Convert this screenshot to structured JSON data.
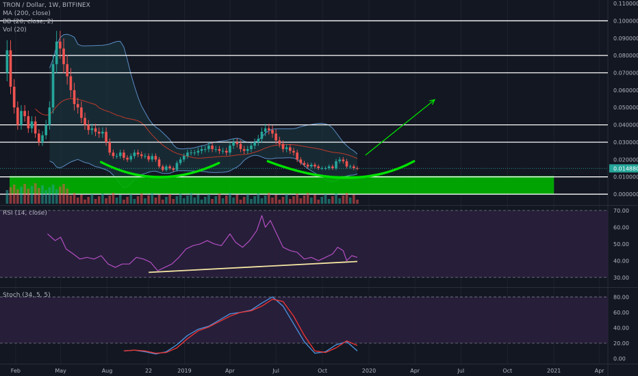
{
  "header": {
    "symbol_line": "TRON / Dollar, 1W, BITFINEX",
    "indicators": [
      "MA (200, close)",
      "BB (20, close, 2)",
      "Vol (20)"
    ]
  },
  "colors": {
    "background": "#131722",
    "grid": "#1e222d",
    "up": "#26a69a",
    "down": "#ef5350",
    "ma": "#c0392b",
    "bb_line": "#5b8dc4",
    "bb_fill": "#1b3a44",
    "support_zone": "#00b300",
    "curve": "#00e000",
    "arrow": "#00e000",
    "rsi_line": "#b44fc2",
    "rsi_band": "#2a1f3d",
    "trendline": "#f5e6a3",
    "stoch_k": "#4a90d9",
    "stoch_d": "#e83535",
    "horizontal_level": "#ffffff",
    "price_label_bg": "#26a69a"
  },
  "chart_data": [
    {
      "id": "price",
      "type": "candlestick",
      "x_axis": {
        "range": [
          "2018-01-01",
          "2021-04-15"
        ],
        "tick_labels": [
          {
            "label": "Feb",
            "date": "2018-02-01"
          },
          {
            "label": "May",
            "date": "2018-05-01"
          },
          {
            "label": "Aug",
            "date": "2018-08-01"
          },
          {
            "label": "22",
            "date": "2018-10-22"
          },
          {
            "label": "2019",
            "date": "2019-01-01"
          },
          {
            "label": "Apr",
            "date": "2019-04-01"
          },
          {
            "label": "Jul",
            "date": "2019-07-01"
          },
          {
            "label": "Oct",
            "date": "2019-10-01"
          },
          {
            "label": "2020",
            "date": "2020-01-01"
          },
          {
            "label": "Apr",
            "date": "2020-04-01"
          },
          {
            "label": "Jul",
            "date": "2020-07-01"
          },
          {
            "label": "Oct",
            "date": "2020-10-01"
          },
          {
            "label": "2021",
            "date": "2021-01-01"
          },
          {
            "label": "Apr",
            "date": "2021-04-01"
          }
        ]
      },
      "y_axis": {
        "range": [
          -0.0055,
          0.112
        ],
        "ticks": [
          "0.110000",
          "0.100000",
          "0.090000",
          "0.080000",
          "0.070000",
          "0.060000",
          "0.050000",
          "0.040000",
          "0.030000",
          "0.020000",
          "0.010000",
          "0.000000"
        ]
      },
      "horizontal_levels": [
        0.1,
        0.08,
        0.07,
        0.04,
        0.03,
        0.01,
        0.0
      ],
      "current_price": {
        "value": 0.01488,
        "label": "0.014880"
      },
      "support_zone": {
        "from": 0.0,
        "to": 0.0105,
        "start": "2018-01-20",
        "end": "2021-01-01"
      },
      "weekly_close": [
        [
          "2018-01-15",
          0.083
        ],
        [
          "2018-01-22",
          0.062
        ],
        [
          "2018-01-29",
          0.05
        ],
        [
          "2018-02-05",
          0.04
        ],
        [
          "2018-02-12",
          0.048
        ],
        [
          "2018-02-19",
          0.045
        ],
        [
          "2018-02-26",
          0.038
        ],
        [
          "2018-03-05",
          0.042
        ],
        [
          "2018-03-12",
          0.035
        ],
        [
          "2018-03-19",
          0.03
        ],
        [
          "2018-03-26",
          0.034
        ],
        [
          "2018-04-02",
          0.04
        ],
        [
          "2018-04-09",
          0.05
        ],
        [
          "2018-04-16",
          0.075
        ],
        [
          "2018-04-23",
          0.088
        ],
        [
          "2018-04-30",
          0.084
        ],
        [
          "2018-05-07",
          0.075
        ],
        [
          "2018-05-14",
          0.068
        ],
        [
          "2018-05-21",
          0.06
        ],
        [
          "2018-05-28",
          0.052
        ],
        [
          "2018-06-04",
          0.05
        ],
        [
          "2018-06-11",
          0.044
        ],
        [
          "2018-06-18",
          0.04
        ],
        [
          "2018-06-25",
          0.037
        ],
        [
          "2018-07-02",
          0.038
        ],
        [
          "2018-07-09",
          0.036
        ],
        [
          "2018-07-16",
          0.035
        ],
        [
          "2018-07-23",
          0.036
        ],
        [
          "2018-07-30",
          0.03
        ],
        [
          "2018-08-06",
          0.024
        ],
        [
          "2018-08-13",
          0.022
        ],
        [
          "2018-08-20",
          0.022
        ],
        [
          "2018-08-27",
          0.024
        ],
        [
          "2018-09-03",
          0.021
        ],
        [
          "2018-09-10",
          0.02
        ],
        [
          "2018-09-17",
          0.022
        ],
        [
          "2018-09-24",
          0.024
        ],
        [
          "2018-10-01",
          0.023
        ],
        [
          "2018-10-08",
          0.022
        ],
        [
          "2018-10-15",
          0.022
        ],
        [
          "2018-10-22",
          0.02
        ],
        [
          "2018-10-29",
          0.022
        ],
        [
          "2018-11-05",
          0.02
        ],
        [
          "2018-11-12",
          0.016
        ],
        [
          "2018-11-19",
          0.014
        ],
        [
          "2018-11-26",
          0.016
        ],
        [
          "2018-12-03",
          0.015
        ],
        [
          "2018-12-10",
          0.014
        ],
        [
          "2018-12-17",
          0.018
        ],
        [
          "2018-12-24",
          0.02
        ],
        [
          "2018-12-31",
          0.022
        ],
        [
          "2019-01-07",
          0.024
        ],
        [
          "2019-01-14",
          0.024
        ],
        [
          "2019-01-21",
          0.024
        ],
        [
          "2019-01-28",
          0.025
        ],
        [
          "2019-02-04",
          0.026
        ],
        [
          "2019-02-11",
          0.026
        ],
        [
          "2019-02-18",
          0.028
        ],
        [
          "2019-02-25",
          0.026
        ],
        [
          "2019-03-04",
          0.026
        ],
        [
          "2019-03-11",
          0.025
        ],
        [
          "2019-03-18",
          0.025
        ],
        [
          "2019-03-25",
          0.024
        ],
        [
          "2019-04-01",
          0.028
        ],
        [
          "2019-04-08",
          0.03
        ],
        [
          "2019-04-15",
          0.029
        ],
        [
          "2019-04-22",
          0.026
        ],
        [
          "2019-04-29",
          0.025
        ],
        [
          "2019-05-06",
          0.026
        ],
        [
          "2019-05-13",
          0.028
        ],
        [
          "2019-05-20",
          0.03
        ],
        [
          "2019-05-27",
          0.032
        ],
        [
          "2019-06-03",
          0.036
        ],
        [
          "2019-06-10",
          0.038
        ],
        [
          "2019-06-17",
          0.037
        ],
        [
          "2019-06-24",
          0.035
        ],
        [
          "2019-07-01",
          0.031
        ],
        [
          "2019-07-08",
          0.029
        ],
        [
          "2019-07-15",
          0.026
        ],
        [
          "2019-07-22",
          0.027
        ],
        [
          "2019-07-29",
          0.025
        ],
        [
          "2019-08-05",
          0.024
        ],
        [
          "2019-08-12",
          0.02
        ],
        [
          "2019-08-19",
          0.018
        ],
        [
          "2019-08-26",
          0.017
        ],
        [
          "2019-09-02",
          0.016
        ],
        [
          "2019-09-09",
          0.017
        ],
        [
          "2019-09-16",
          0.016
        ],
        [
          "2019-09-23",
          0.015
        ],
        [
          "2019-09-30",
          0.015
        ],
        [
          "2019-10-07",
          0.015
        ],
        [
          "2019-10-14",
          0.016
        ],
        [
          "2019-10-21",
          0.015
        ],
        [
          "2019-10-28",
          0.019
        ],
        [
          "2019-11-04",
          0.02
        ],
        [
          "2019-11-11",
          0.019
        ],
        [
          "2019-11-18",
          0.016
        ],
        [
          "2019-11-25",
          0.016
        ],
        [
          "2019-12-02",
          0.015
        ],
        [
          "2019-12-09",
          0.0149
        ]
      ]
    },
    {
      "id": "rsi",
      "type": "line",
      "y_axis": {
        "range": [
          25,
          72
        ],
        "ticks": [
          "70.00",
          "60.00",
          "50.00",
          "40.00",
          "30.00"
        ]
      },
      "band": [
        30,
        70
      ],
      "values": [
        [
          "2018-04-05",
          56
        ],
        [
          "2018-04-20",
          52
        ],
        [
          "2018-05-01",
          54
        ],
        [
          "2018-05-12",
          47
        ],
        [
          "2018-05-26",
          44
        ],
        [
          "2018-06-08",
          41
        ],
        [
          "2018-06-22",
          42
        ],
        [
          "2018-07-06",
          41
        ],
        [
          "2018-07-20",
          43
        ],
        [
          "2018-08-03",
          38
        ],
        [
          "2018-08-17",
          36
        ],
        [
          "2018-08-31",
          38
        ],
        [
          "2018-09-14",
          38
        ],
        [
          "2018-09-28",
          42
        ],
        [
          "2018-10-12",
          41
        ],
        [
          "2018-10-26",
          39
        ],
        [
          "2018-11-09",
          34
        ],
        [
          "2018-11-23",
          36
        ],
        [
          "2018-12-07",
          38
        ],
        [
          "2018-12-21",
          42
        ],
        [
          "2019-01-04",
          47
        ],
        [
          "2019-01-18",
          49
        ],
        [
          "2019-02-01",
          50
        ],
        [
          "2019-02-15",
          52
        ],
        [
          "2019-03-01",
          50
        ],
        [
          "2019-03-15",
          49
        ],
        [
          "2019-04-01",
          56
        ],
        [
          "2019-04-12",
          51
        ],
        [
          "2019-04-26",
          48
        ],
        [
          "2019-05-10",
          52
        ],
        [
          "2019-05-24",
          58
        ],
        [
          "2019-06-03",
          67
        ],
        [
          "2019-06-10",
          60
        ],
        [
          "2019-06-20",
          64
        ],
        [
          "2019-07-01",
          57
        ],
        [
          "2019-07-15",
          48
        ],
        [
          "2019-07-29",
          46
        ],
        [
          "2019-08-12",
          45
        ],
        [
          "2019-08-26",
          41
        ],
        [
          "2019-09-09",
          42
        ],
        [
          "2019-09-23",
          40
        ],
        [
          "2019-10-07",
          42
        ],
        [
          "2019-10-21",
          44
        ],
        [
          "2019-10-31",
          48
        ],
        [
          "2019-11-11",
          46
        ],
        [
          "2019-11-18",
          40
        ],
        [
          "2019-11-28",
          43
        ],
        [
          "2019-12-09",
          42
        ]
      ],
      "trendline": [
        [
          "2018-10-22",
          33
        ],
        [
          "2019-12-09",
          39.5
        ]
      ]
    },
    {
      "id": "stoch",
      "type": "line",
      "y_axis": {
        "range": [
          -3,
          90
        ],
        "ticks": [
          "80.00",
          "60.00",
          "40.00",
          "20.00",
          "0.00"
        ]
      },
      "band": [
        20,
        80
      ],
      "series": [
        {
          "id": "k",
          "values": [
            [
              "2018-09-03",
              10
            ],
            [
              "2018-09-24",
              11
            ],
            [
              "2018-10-15",
              9
            ],
            [
              "2018-11-05",
              6
            ],
            [
              "2018-11-26",
              9
            ],
            [
              "2018-12-17",
              18
            ],
            [
              "2019-01-07",
              30
            ],
            [
              "2019-01-28",
              38
            ],
            [
              "2019-02-18",
              42
            ],
            [
              "2019-03-11",
              50
            ],
            [
              "2019-04-01",
              58
            ],
            [
              "2019-04-22",
              60
            ],
            [
              "2019-05-13",
              63
            ],
            [
              "2019-06-03",
              72
            ],
            [
              "2019-06-24",
              80
            ],
            [
              "2019-07-15",
              68
            ],
            [
              "2019-08-05",
              45
            ],
            [
              "2019-08-26",
              22
            ],
            [
              "2019-09-16",
              7
            ],
            [
              "2019-10-07",
              9
            ],
            [
              "2019-10-28",
              18
            ],
            [
              "2019-11-18",
              22
            ],
            [
              "2019-12-09",
              10
            ]
          ]
        },
        {
          "id": "d",
          "values": [
            [
              "2018-09-03",
              10
            ],
            [
              "2018-09-24",
              11
            ],
            [
              "2018-10-15",
              10
            ],
            [
              "2018-11-05",
              7
            ],
            [
              "2018-11-26",
              8
            ],
            [
              "2018-12-17",
              14
            ],
            [
              "2019-01-07",
              26
            ],
            [
              "2019-01-28",
              36
            ],
            [
              "2019-02-18",
              41
            ],
            [
              "2019-03-11",
              48
            ],
            [
              "2019-04-01",
              55
            ],
            [
              "2019-04-22",
              60
            ],
            [
              "2019-05-13",
              62
            ],
            [
              "2019-06-03",
              68
            ],
            [
              "2019-06-24",
              77
            ],
            [
              "2019-07-15",
              74
            ],
            [
              "2019-08-05",
              55
            ],
            [
              "2019-08-26",
              30
            ],
            [
              "2019-09-16",
              10
            ],
            [
              "2019-10-07",
              8
            ],
            [
              "2019-10-28",
              14
            ],
            [
              "2019-11-18",
              23
            ],
            [
              "2019-12-09",
              17
            ]
          ]
        }
      ]
    }
  ]
}
